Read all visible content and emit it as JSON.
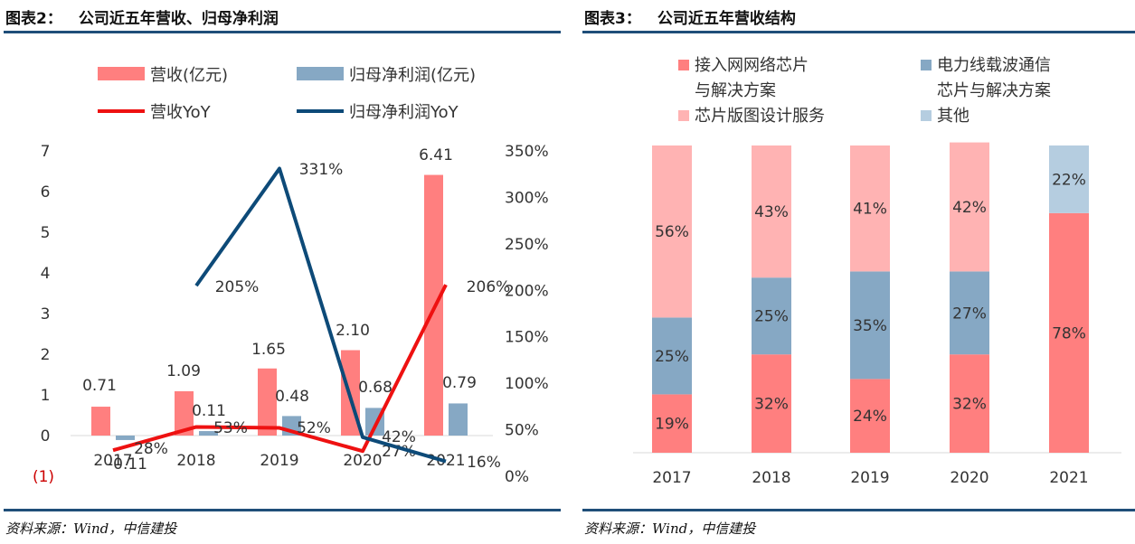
{
  "left_panel": {
    "fig_number": "图表2：",
    "fig_title": "公司近五年营收、归母净利润",
    "source": "资料来源：Wind，中信建投"
  },
  "right_panel": {
    "fig_number": "图表3：",
    "fig_title": "公司近五年营收结构",
    "source": "资料来源：Wind，中信建投"
  },
  "colors": {
    "revenue_bar": "#ff7f7f",
    "profit_bar": "#86a8c4",
    "revenue_yoy_line": "#ee1111",
    "profit_yoy_line": "#0d4a78",
    "seg_access": "#ff7f7f",
    "seg_power": "#86a8c4",
    "seg_design": "#ffb3b3",
    "seg_other": "#b5cde0",
    "rule": "#1f4e79",
    "negative_label": "#cc0000"
  },
  "chart_data": [
    {
      "type": "bar",
      "combo": "bar+line",
      "categories": [
        "2017",
        "2018",
        "2019",
        "2020",
        "2021"
      ],
      "series": [
        {
          "name": "营收(亿元)",
          "kind": "bar",
          "axis": "left",
          "values": [
            0.71,
            1.09,
            1.65,
            2.1,
            6.41
          ],
          "labels": [
            "0.71",
            "1.09",
            "1.65",
            "2.10",
            "6.41"
          ]
        },
        {
          "name": "归母净利润(亿元)",
          "kind": "bar",
          "axis": "left",
          "values": [
            -0.11,
            0.11,
            0.48,
            0.68,
            0.79
          ],
          "labels": [
            "-0.11",
            "0.11",
            "0.48",
            "0.68",
            "0.79"
          ]
        },
        {
          "name": "营收YoY",
          "kind": "line",
          "axis": "right",
          "values": [
            28,
            53,
            52,
            27,
            206
          ],
          "labels": [
            "28%",
            "53%",
            "52%",
            "27%",
            "206%"
          ]
        },
        {
          "name": "归母净利润YoY",
          "kind": "line",
          "axis": "right",
          "values": [
            null,
            205,
            331,
            42,
            16
          ],
          "labels": [
            "",
            "205%",
            "331%",
            "42%",
            "16%"
          ]
        }
      ],
      "left_axis": {
        "min": -1,
        "max": 7,
        "ticks": [
          7,
          6,
          5,
          4,
          3,
          2,
          1,
          0
        ],
        "tick_labels": [
          "7",
          "6",
          "5",
          "4",
          "3",
          "2",
          "1",
          "0"
        ],
        "bottom_label": "(1)"
      },
      "right_axis": {
        "min": 0,
        "max": 350,
        "ticks": [
          350,
          300,
          250,
          200,
          150,
          100,
          50,
          0
        ],
        "tick_labels": [
          "350%",
          "300%",
          "250%",
          "200%",
          "150%",
          "100%",
          "50%",
          "0%"
        ]
      },
      "legend": [
        "营收(亿元)",
        "归母净利润(亿元)",
        "营收YoY",
        "归母净利润YoY"
      ],
      "legend_position": "top"
    },
    {
      "type": "bar",
      "stacked": true,
      "percent": true,
      "categories": [
        "2017",
        "2018",
        "2019",
        "2020",
        "2021"
      ],
      "series": [
        {
          "name": "接入网网络芯片与解决方案",
          "legend_lines": [
            "接入网网络芯片",
            "与解决方案"
          ],
          "values": [
            19,
            32,
            24,
            32,
            78
          ]
        },
        {
          "name": "电力线载波通信芯片与解决方案",
          "legend_lines": [
            "电力线载波通信",
            "芯片与解决方案"
          ],
          "values": [
            25,
            25,
            35,
            27,
            0
          ]
        },
        {
          "name": "芯片版图设计服务",
          "legend_lines": [
            "芯片版图设计服务"
          ],
          "values": [
            56,
            43,
            41,
            42,
            0
          ]
        },
        {
          "name": "其他",
          "legend_lines": [
            "其他"
          ],
          "values": [
            0,
            0,
            0,
            0,
            22
          ]
        }
      ],
      "value_suffix": "%",
      "legend_position": "top"
    }
  ]
}
